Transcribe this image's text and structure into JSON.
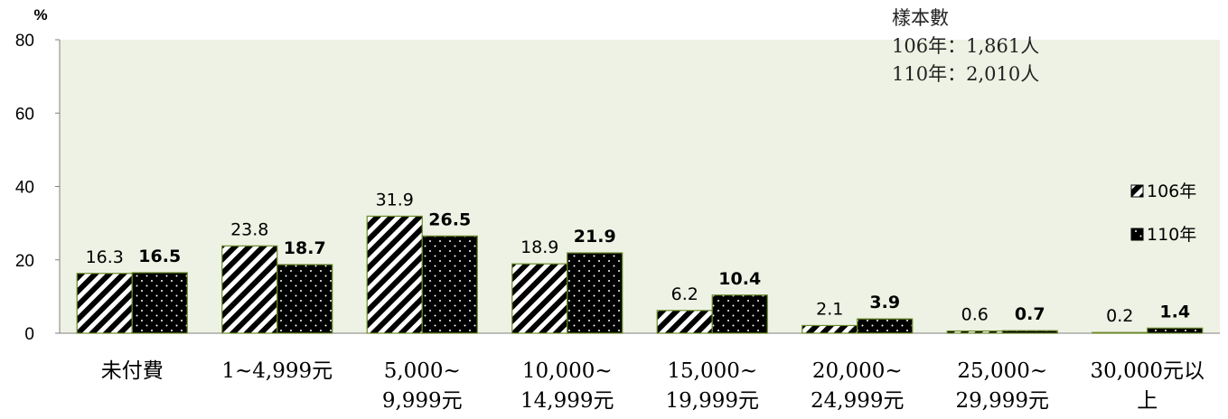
{
  "chart_data": {
    "type": "bar",
    "y_unit": "%",
    "ylim": [
      0,
      80
    ],
    "yticks": [
      "0",
      "20",
      "40",
      "60",
      "80"
    ],
    "grid": false,
    "legend_position": "right",
    "categories": [
      [
        "未付費"
      ],
      [
        "1~4,999元"
      ],
      [
        "5,000~",
        "9,999元"
      ],
      [
        "10,000~",
        "14,999元"
      ],
      [
        "15,000~",
        "19,999元"
      ],
      [
        "20,000~",
        "24,999元"
      ],
      [
        "25,000~",
        "29,999元"
      ],
      [
        "30,000元以",
        "上"
      ]
    ],
    "series": [
      {
        "name": "106年",
        "values": [
          16.3,
          23.8,
          31.9,
          18.9,
          6.2,
          2.1,
          0.6,
          0.2
        ],
        "labels": [
          "16.3",
          "23.8",
          "31.9",
          "18.9",
          "6.2",
          "2.1",
          "0.6",
          "0.2"
        ],
        "pattern": "diagonal-stripes",
        "label_bold": false
      },
      {
        "name": "110年",
        "values": [
          16.5,
          18.7,
          26.5,
          21.9,
          10.4,
          3.9,
          0.7,
          1.4
        ],
        "labels": [
          "16.5",
          "18.7",
          "26.5",
          "21.9",
          "10.4",
          "3.9",
          "0.7",
          "1.4"
        ],
        "pattern": "black-dotted",
        "label_bold": true
      }
    ],
    "sample_note": [
      "樣本數",
      "106年：1,861人",
      "110年：2,010人"
    ],
    "colors": {
      "plot_background": "#eef2e4",
      "bar_border": "#6b8a2a",
      "bar_dark": "#000000"
    }
  }
}
